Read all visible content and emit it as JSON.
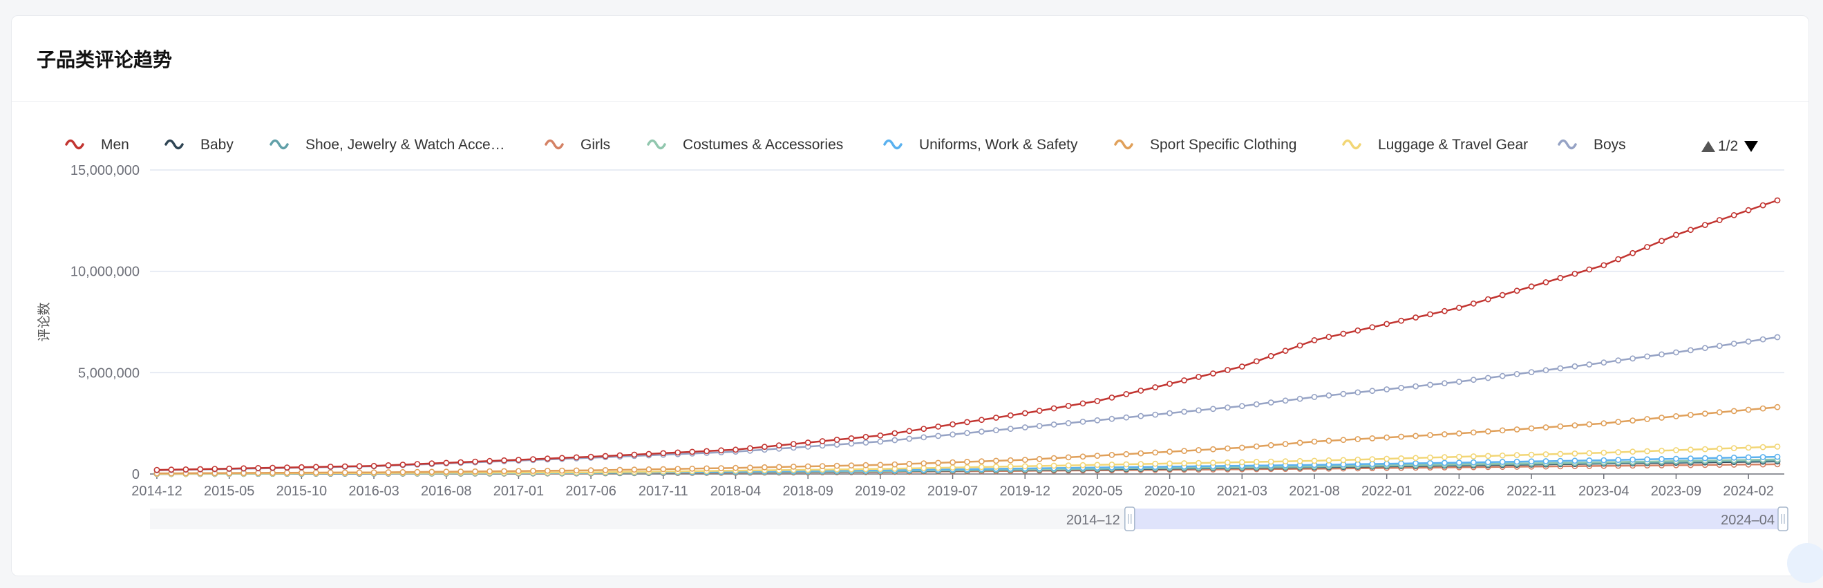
{
  "card": {
    "title": "子品类评论趋势"
  },
  "legend": {
    "page_indicator": "1/2",
    "items": [
      {
        "name": "Men",
        "color": "#c23531"
      },
      {
        "name": "Baby",
        "color": "#2f4554"
      },
      {
        "name": "Shoe, Jewelry & Watch Acce…",
        "color": "#61a0a8"
      },
      {
        "name": "Girls",
        "color": "#d48265"
      },
      {
        "name": "Costumes & Accessories",
        "color": "#91c7ae"
      },
      {
        "name": "Uniforms, Work & Safety",
        "color": "#5ab1ef"
      },
      {
        "name": "Sport Specific Clothing",
        "color": "#e0a05a"
      },
      {
        "name": "Luggage & Travel Gear",
        "color": "#f2d675"
      },
      {
        "name": "Boys",
        "color": "#96a3c5"
      }
    ]
  },
  "datazoom": {
    "start_label": "2014–12",
    "end_label": "2024–04",
    "start_fraction": 0.6,
    "end_fraction": 1.0
  },
  "chart_data": {
    "type": "line",
    "ylabel": "评论数",
    "ylim": [
      0,
      15000000
    ],
    "y_ticks": [
      "15,000,000",
      "10,000,000",
      "5,000,000",
      "0"
    ],
    "y_tick_values": [
      15000000,
      10000000,
      5000000,
      0
    ],
    "x_start": "2014-12",
    "x_end": "2024-04",
    "x_tick_labels": [
      "2014-12",
      "2015-05",
      "2015-10",
      "2016-03",
      "2016-08",
      "2017-01",
      "2017-06",
      "2017-11",
      "2018-04",
      "2018-09",
      "2019-02",
      "2019-07",
      "2019-12",
      "2020-05",
      "2020-10",
      "2021-03",
      "2021-08",
      "2022-01",
      "2022-06",
      "2022-11",
      "2023-04",
      "2023-09",
      "2024-02"
    ],
    "grid": true,
    "series_keypoints_note": "values at dates, interpolated monthly",
    "series": [
      {
        "name": "Men",
        "color": "#c23531",
        "points": [
          [
            "2014-12",
            200000
          ],
          [
            "2016-03",
            400000
          ],
          [
            "2017-06",
            850000
          ],
          [
            "2018-04",
            1200000
          ],
          [
            "2019-02",
            1900000
          ],
          [
            "2019-12",
            3000000
          ],
          [
            "2020-05",
            3600000
          ],
          [
            "2021-03",
            5300000
          ],
          [
            "2021-08",
            6600000
          ],
          [
            "2022-06",
            8200000
          ],
          [
            "2023-04",
            10300000
          ],
          [
            "2023-09",
            11800000
          ],
          [
            "2024-04",
            13500000
          ]
        ]
      },
      {
        "name": "Boys",
        "color": "#96a3c5",
        "points": [
          [
            "2014-12",
            180000
          ],
          [
            "2016-03",
            380000
          ],
          [
            "2017-06",
            800000
          ],
          [
            "2018-04",
            1100000
          ],
          [
            "2019-02",
            1600000
          ],
          [
            "2019-12",
            2300000
          ],
          [
            "2020-05",
            2650000
          ],
          [
            "2021-03",
            3350000
          ],
          [
            "2021-08",
            3800000
          ],
          [
            "2022-06",
            4550000
          ],
          [
            "2023-04",
            5500000
          ],
          [
            "2023-09",
            6000000
          ],
          [
            "2024-04",
            6750000
          ]
        ]
      },
      {
        "name": "Sport Specific Clothing",
        "color": "#e0a05a",
        "points": [
          [
            "2014-12",
            30000
          ],
          [
            "2016-03",
            80000
          ],
          [
            "2017-06",
            180000
          ],
          [
            "2018-04",
            300000
          ],
          [
            "2019-02",
            450000
          ],
          [
            "2019-12",
            700000
          ],
          [
            "2020-05",
            900000
          ],
          [
            "2021-03",
            1300000
          ],
          [
            "2021-08",
            1600000
          ],
          [
            "2022-06",
            2000000
          ],
          [
            "2023-04",
            2500000
          ],
          [
            "2023-09",
            2850000
          ],
          [
            "2024-04",
            3300000
          ]
        ]
      },
      {
        "name": "Luggage & Travel Gear",
        "color": "#f2d675",
        "points": [
          [
            "2014-12",
            10000
          ],
          [
            "2017-06",
            80000
          ],
          [
            "2019-02",
            250000
          ],
          [
            "2020-05",
            450000
          ],
          [
            "2021-08",
            650000
          ],
          [
            "2022-06",
            850000
          ],
          [
            "2023-04",
            1050000
          ],
          [
            "2024-04",
            1350000
          ]
        ]
      },
      {
        "name": "Uniforms, Work & Safety",
        "color": "#5ab1ef",
        "points": [
          [
            "2014-12",
            5000
          ],
          [
            "2017-06",
            60000
          ],
          [
            "2019-02",
            180000
          ],
          [
            "2020-05",
            320000
          ],
          [
            "2021-08",
            450000
          ],
          [
            "2022-06",
            560000
          ],
          [
            "2023-04",
            680000
          ],
          [
            "2024-04",
            850000
          ]
        ]
      },
      {
        "name": "Costumes & Accessories",
        "color": "#91c7ae",
        "points": [
          [
            "2014-12",
            5000
          ],
          [
            "2017-06",
            50000
          ],
          [
            "2019-02",
            150000
          ],
          [
            "2020-05",
            270000
          ],
          [
            "2021-08",
            380000
          ],
          [
            "2022-06",
            480000
          ],
          [
            "2023-04",
            580000
          ],
          [
            "2024-04",
            720000
          ]
        ]
      },
      {
        "name": "Shoe, Jewelry & Watch Acce…",
        "color": "#61a0a8",
        "points": [
          [
            "2014-12",
            4000
          ],
          [
            "2017-06",
            45000
          ],
          [
            "2019-02",
            140000
          ],
          [
            "2020-05",
            250000
          ],
          [
            "2021-08",
            350000
          ],
          [
            "2022-06",
            450000
          ],
          [
            "2023-04",
            540000
          ],
          [
            "2024-04",
            660000
          ]
        ]
      },
      {
        "name": "Baby",
        "color": "#2f4554",
        "points": [
          [
            "2014-12",
            3000
          ],
          [
            "2017-06",
            40000
          ],
          [
            "2019-02",
            130000
          ],
          [
            "2020-05",
            230000
          ],
          [
            "2021-08",
            330000
          ],
          [
            "2022-06",
            420000
          ],
          [
            "2023-04",
            510000
          ],
          [
            "2024-04",
            620000
          ]
        ]
      },
      {
        "name": "Girls",
        "color": "#d48265",
        "points": [
          [
            "2014-12",
            2000
          ],
          [
            "2017-06",
            30000
          ],
          [
            "2019-02",
            100000
          ],
          [
            "2020-05",
            180000
          ],
          [
            "2021-08",
            260000
          ],
          [
            "2022-06",
            330000
          ],
          [
            "2023-04",
            400000
          ],
          [
            "2024-04",
            480000
          ]
        ]
      }
    ]
  }
}
